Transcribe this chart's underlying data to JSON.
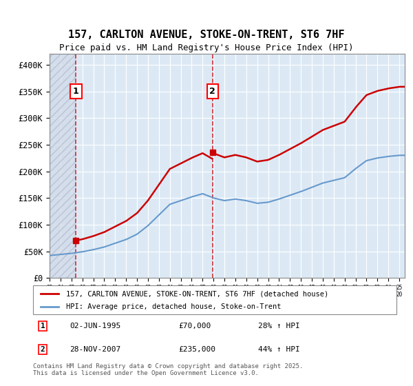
{
  "title": "157, CARLTON AVENUE, STOKE-ON-TRENT, ST6 7HF",
  "subtitle": "Price paid vs. HM Land Registry's House Price Index (HPI)",
  "ylabel": "",
  "ylim": [
    0,
    420000
  ],
  "yticks": [
    0,
    50000,
    100000,
    150000,
    200000,
    250000,
    300000,
    350000,
    400000
  ],
  "ytick_labels": [
    "£0",
    "£50K",
    "£100K",
    "£150K",
    "£200K",
    "£250K",
    "£300K",
    "£350K",
    "£400K"
  ],
  "background_color": "#ffffff",
  "plot_bg_color": "#dce9f5",
  "hatch_color": "#c0c0c0",
  "grid_color": "#ffffff",
  "sale1_date": 1995.42,
  "sale1_price": 70000,
  "sale2_date": 2007.91,
  "sale2_price": 235000,
  "legend_line1": "157, CARLTON AVENUE, STOKE-ON-TRENT, ST6 7HF (detached house)",
  "legend_line2": "HPI: Average price, detached house, Stoke-on-Trent",
  "annotation1_label": "1",
  "annotation1_date": "02-JUN-1995",
  "annotation1_price": "£70,000",
  "annotation1_hpi": "28% ↑ HPI",
  "annotation2_label": "2",
  "annotation2_date": "28-NOV-2007",
  "annotation2_price": "£235,000",
  "annotation2_hpi": "44% ↑ HPI",
  "footer": "Contains HM Land Registry data © Crown copyright and database right 2025.\nThis data is licensed under the Open Government Licence v3.0.",
  "line1_color": "#cc0000",
  "line2_color": "#6699cc",
  "marker_color": "#cc0000",
  "xmin": 1993,
  "xmax": 2025.5
}
